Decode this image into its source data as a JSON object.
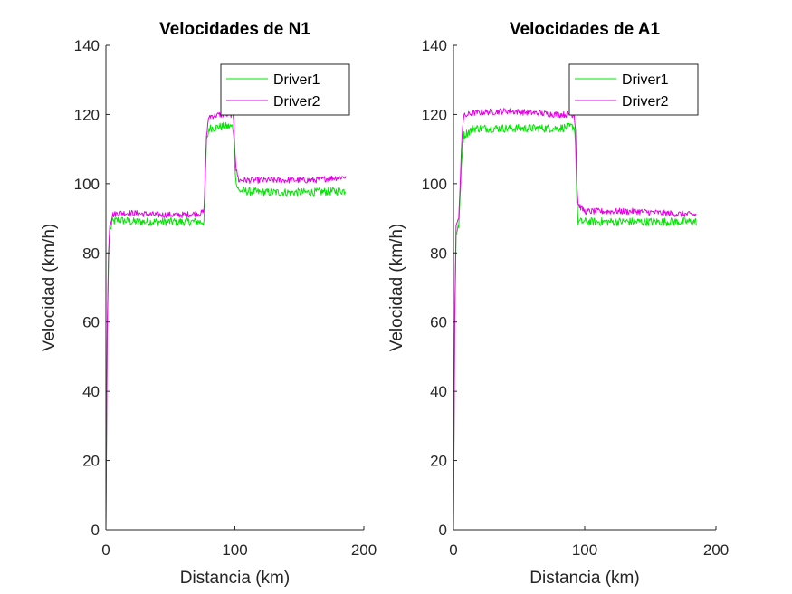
{
  "chart_data": [
    {
      "type": "line",
      "title": "Velocidades de N1",
      "xlabel": "Distancia (km)",
      "ylabel": "Velocidad (km/h)",
      "xlim": [
        0,
        200
      ],
      "ylim": [
        0,
        140
      ],
      "xticks": [
        "0",
        "100",
        "200"
      ],
      "yticks": [
        "0",
        "20",
        "40",
        "60",
        "80",
        "100",
        "120",
        "140"
      ],
      "grid": false,
      "legend": "top-right",
      "series": [
        {
          "name": "Driver1",
          "color": "#00e600",
          "profile": [
            [
              0,
              0
            ],
            [
              1,
              55
            ],
            [
              2,
              78
            ],
            [
              3,
              86
            ],
            [
              5,
              89
            ],
            [
              10,
              89.5
            ],
            [
              20,
              89
            ],
            [
              40,
              89
            ],
            [
              60,
              89
            ],
            [
              74,
              89
            ],
            [
              76,
              89
            ],
            [
              78,
              112
            ],
            [
              80,
              116
            ],
            [
              90,
              116.5
            ],
            [
              98,
              116.5
            ],
            [
              99,
              115
            ],
            [
              100,
              106
            ],
            [
              101,
              100
            ],
            [
              103,
              98
            ],
            [
              120,
              97.5
            ],
            [
              140,
              97.5
            ],
            [
              160,
              97.5
            ],
            [
              186,
              98
            ]
          ],
          "noise": 1.2
        },
        {
          "name": "Driver2",
          "color": "#e600e6",
          "profile": [
            [
              0,
              0
            ],
            [
              1,
              58
            ],
            [
              2,
              80
            ],
            [
              3,
              88
            ],
            [
              5,
              91
            ],
            [
              10,
              91.5
            ],
            [
              20,
              91.5
            ],
            [
              40,
              91
            ],
            [
              60,
              91
            ],
            [
              74,
              91.5
            ],
            [
              76,
              92
            ],
            [
              78,
              114
            ],
            [
              80,
              119.5
            ],
            [
              90,
              120
            ],
            [
              98,
              120
            ],
            [
              99,
              119
            ],
            [
              100,
              110
            ],
            [
              101,
              104
            ],
            [
              103,
              101
            ],
            [
              120,
              101
            ],
            [
              140,
              101
            ],
            [
              160,
              101
            ],
            [
              186,
              102
            ]
          ],
          "noise": 0.9
        }
      ]
    },
    {
      "type": "line",
      "title": "Velocidades de A1",
      "xlabel": "Distancia (km)",
      "ylabel": "Velocidad (km/h)",
      "xlim": [
        0,
        200
      ],
      "ylim": [
        0,
        140
      ],
      "xticks": [
        "0",
        "100",
        "200"
      ],
      "yticks": [
        "0",
        "20",
        "40",
        "60",
        "80",
        "100",
        "120",
        "140"
      ],
      "grid": false,
      "legend": "top-right",
      "series": [
        {
          "name": "Driver1",
          "color": "#00e600",
          "profile": [
            [
              0,
              0
            ],
            [
              1,
              60
            ],
            [
              2,
              85
            ],
            [
              4,
              88
            ],
            [
              5,
              95
            ],
            [
              6,
              105
            ],
            [
              7,
              112
            ],
            [
              8,
              114
            ],
            [
              15,
              116
            ],
            [
              40,
              116
            ],
            [
              60,
              116
            ],
            [
              80,
              116
            ],
            [
              92,
              116.5
            ],
            [
              93,
              112
            ],
            [
              94,
              95
            ],
            [
              95,
              89
            ],
            [
              100,
              89
            ],
            [
              120,
              89
            ],
            [
              140,
              89
            ],
            [
              160,
              89
            ],
            [
              185,
              89
            ]
          ],
          "noise": 1.2
        },
        {
          "name": "Driver2",
          "color": "#e600e6",
          "profile": [
            [
              0,
              0
            ],
            [
              1,
              62
            ],
            [
              2,
              88
            ],
            [
              4,
              90
            ],
            [
              5,
              98
            ],
            [
              6,
              110
            ],
            [
              7,
              117
            ],
            [
              8,
              119.5
            ],
            [
              15,
              120.5
            ],
            [
              40,
              121
            ],
            [
              60,
              120.5
            ],
            [
              80,
              120
            ],
            [
              92,
              120
            ],
            [
              93,
              116
            ],
            [
              94,
              100
            ],
            [
              95,
              94
            ],
            [
              100,
              92
            ],
            [
              120,
              92
            ],
            [
              140,
              92
            ],
            [
              160,
              91.5
            ],
            [
              185,
              91
            ]
          ],
          "noise": 0.9
        }
      ]
    }
  ]
}
